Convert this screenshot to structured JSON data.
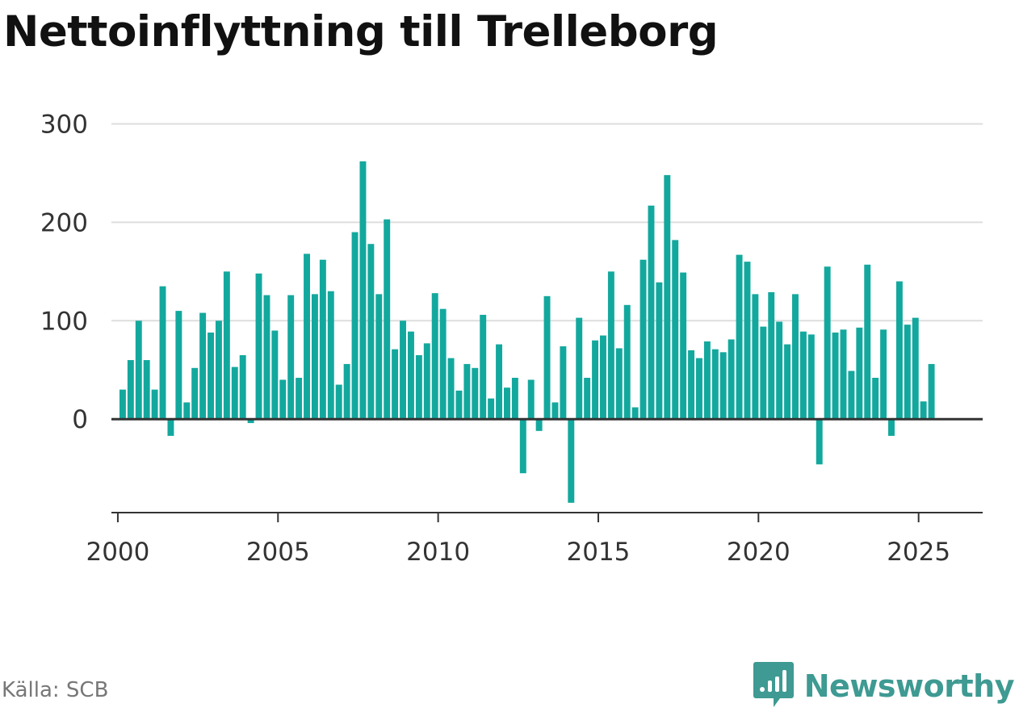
{
  "title": "Nettoinflyttning till Trelleborg",
  "source": "Källa: SCB",
  "brand": {
    "name": "Newsworthy",
    "icon": "newsworthy-logo-icon",
    "color": "#3e9a92"
  },
  "colors": {
    "bar": "#13a89e",
    "grid": "#dddddd",
    "baseline": "#333333"
  },
  "chart_data": {
    "type": "bar",
    "title": "Nettoinflyttning till Trelleborg",
    "xlabel": "",
    "ylabel": "",
    "ylim": [
      -95,
      300
    ],
    "xlim": [
      1999.8,
      2027.0
    ],
    "grid": true,
    "y_ticks": [
      0,
      100,
      200,
      300
    ],
    "y_tick_labels": [
      "0",
      "100",
      "200",
      "300"
    ],
    "x_ticks": [
      2000,
      2005,
      2010,
      2015,
      2020,
      2025
    ],
    "x_tick_labels": [
      "2000",
      "2005",
      "2010",
      "2015",
      "2020",
      "2025"
    ],
    "frequency": "quarterly",
    "start": "2000 Q1",
    "values": [
      30,
      60,
      100,
      60,
      30,
      135,
      -17,
      110,
      17,
      52,
      108,
      88,
      100,
      150,
      53,
      65,
      -4,
      148,
      126,
      90,
      40,
      126,
      42,
      168,
      127,
      162,
      130,
      35,
      56,
      190,
      262,
      178,
      127,
      203,
      71,
      100,
      89,
      65,
      77,
      128,
      112,
      62,
      29,
      56,
      52,
      106,
      21,
      76,
      32,
      42,
      -55,
      40,
      -12,
      125,
      17,
      74,
      -85,
      103,
      42,
      80,
      85,
      150,
      72,
      116,
      12,
      162,
      217,
      139,
      248,
      182,
      149,
      70,
      62,
      79,
      71,
      68,
      81,
      167,
      160,
      127,
      94,
      129,
      99,
      76,
      127,
      89,
      86,
      -46,
      155,
      88,
      91,
      49,
      93,
      157,
      42,
      91,
      -17,
      140,
      96,
      103,
      18,
      56
    ]
  }
}
